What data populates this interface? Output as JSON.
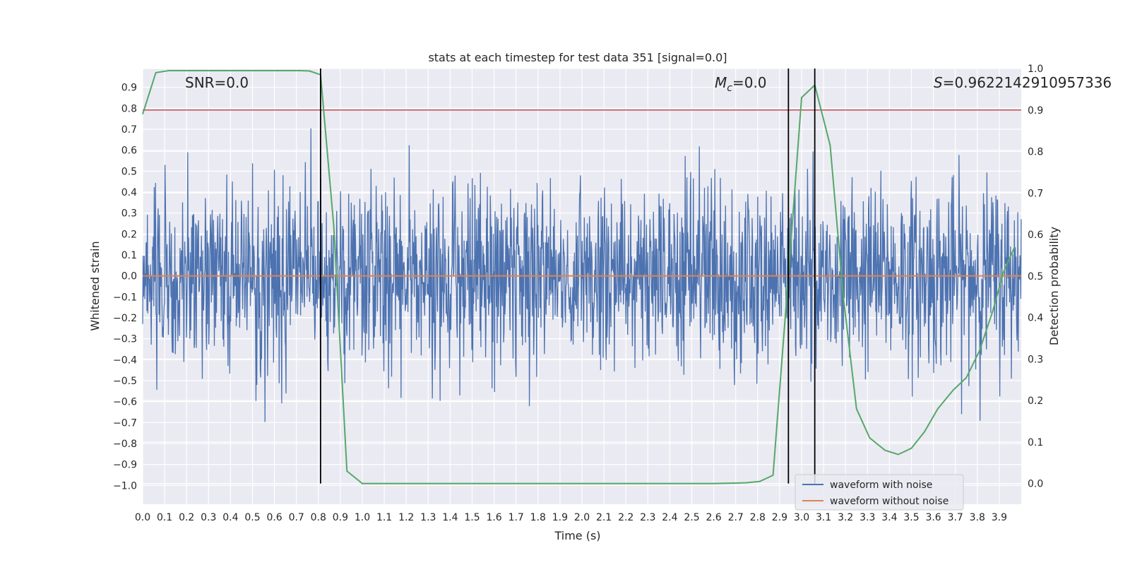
{
  "chart_data": {
    "type": "line",
    "title": "stats at each timestep for test data 351 [signal=0.0]",
    "xlabel": "Time (s)",
    "ylabel": "Whitened strain",
    "y2label": "Detection probability",
    "xlim": [
      0.0,
      4.0
    ],
    "ylim": [
      -1.09,
      0.99
    ],
    "y2lim": [
      -0.05,
      1.0
    ],
    "xticks": [
      "0.0",
      "0.1",
      "0.2",
      "0.3",
      "0.4",
      "0.5",
      "0.6",
      "0.7",
      "0.8",
      "0.9",
      "1.0",
      "1.1",
      "1.2",
      "1.3",
      "1.4",
      "1.5",
      "1.6",
      "1.7",
      "1.8",
      "1.9",
      "2.0",
      "2.1",
      "2.2",
      "2.3",
      "2.4",
      "2.5",
      "2.6",
      "2.7",
      "2.8",
      "2.9",
      "3.0",
      "3.1",
      "3.2",
      "3.3",
      "3.4",
      "3.5",
      "3.6",
      "3.7",
      "3.8",
      "3.9"
    ],
    "yticks": [
      "0.9",
      "0.8",
      "0.7",
      "0.6",
      "0.5",
      "0.4",
      "0.3",
      "0.2",
      "0.1",
      "0.0",
      "−0.1",
      "−0.2",
      "−0.3",
      "−0.4",
      "−0.5",
      "−0.6",
      "−0.7",
      "−0.8",
      "−0.9",
      "−1.0"
    ],
    "y2ticks": [
      "1.0",
      "0.9",
      "0.8",
      "0.7",
      "0.6",
      "0.5",
      "0.4",
      "0.3",
      "0.2",
      "0.1",
      "0.0"
    ],
    "grid": true,
    "legend_position": "lower-right",
    "annotations": {
      "snr": "SNR=0.0",
      "mc_symbol": "M",
      "mc_sub": "c",
      "mc_value": "=0.0",
      "s_symbol": "S",
      "s_value": "=0.9622142910957336"
    },
    "series": [
      {
        "name": "waveform with noise",
        "color": "#4c72b0",
        "kind": "noise",
        "y_range": [
          -1.0,
          0.89
        ]
      },
      {
        "name": "waveform without noise",
        "color": "#dd8452",
        "kind": "constant",
        "value": 0.0
      },
      {
        "kind": "detection",
        "color": "#55a868",
        "x": [
          0.0,
          0.06,
          0.12,
          0.18,
          0.24,
          0.3,
          0.36,
          0.42,
          0.48,
          0.54,
          0.6,
          0.66,
          0.72,
          0.76,
          0.81,
          0.87,
          0.93,
          1.0,
          1.1,
          1.3,
          1.5,
          1.7,
          1.9,
          2.1,
          2.3,
          2.5,
          2.6,
          2.7,
          2.75,
          2.81,
          2.87,
          2.94,
          3.0,
          3.06,
          3.13,
          3.19,
          3.25,
          3.31,
          3.38,
          3.44,
          3.5,
          3.56,
          3.62,
          3.69,
          3.75,
          3.81,
          3.87,
          3.92,
          3.97
        ],
        "y": [
          0.89,
          0.99,
          0.995,
          0.995,
          0.995,
          0.995,
          0.995,
          0.995,
          0.995,
          0.995,
          0.995,
          0.995,
          0.995,
          0.994,
          0.985,
          0.62,
          0.03,
          0.0,
          0.0,
          0.0,
          0.0,
          0.0,
          0.0,
          0.0,
          0.0,
          0.0,
          0.0,
          0.001,
          0.002,
          0.005,
          0.02,
          0.5,
          0.93,
          0.96,
          0.815,
          0.45,
          0.18,
          0.11,
          0.08,
          0.07,
          0.085,
          0.125,
          0.18,
          0.225,
          0.255,
          0.32,
          0.415,
          0.51,
          0.57
        ]
      }
    ],
    "threshold": {
      "value": 0.9,
      "axis": "y2",
      "color": "#c44e52"
    },
    "vlines": [
      0.81,
      2.94,
      3.06
    ]
  }
}
